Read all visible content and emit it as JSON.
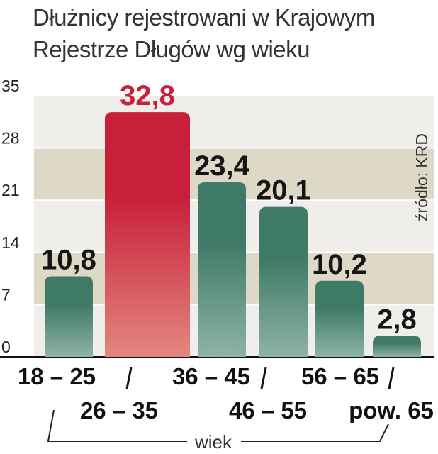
{
  "chart_data": {
    "type": "bar",
    "title_lines": [
      "Dłużnicy rejestrowani w Krajowym",
      "Rejestrze Długów wg wieku"
    ],
    "categories": [
      "18 – 25",
      "26 – 35",
      "36 – 45",
      "46 – 55",
      "56 – 65",
      "pow. 65"
    ],
    "values": [
      10.8,
      32.8,
      23.4,
      20.1,
      10.2,
      2.8
    ],
    "value_labels": [
      "10,8",
      "32,8",
      "23,4",
      "20,1",
      "10,2",
      "2,8"
    ],
    "highlight_index": 1,
    "yticks": [
      0,
      7,
      14,
      21,
      28,
      35
    ],
    "ylim": [
      0,
      35
    ],
    "xlabel": "wiek",
    "ylabel": "",
    "source": "źródło: KRD",
    "grid": true,
    "colors": {
      "bar": "#3f7a67",
      "bar_light": "#8fb3a6",
      "highlight": "#c8203a",
      "highlight_light": "#e3877e",
      "band_dark": "#ded8c6",
      "band_light": "#f0eeea",
      "value_text": "#151515",
      "highlight_text": "#c8203a"
    }
  }
}
